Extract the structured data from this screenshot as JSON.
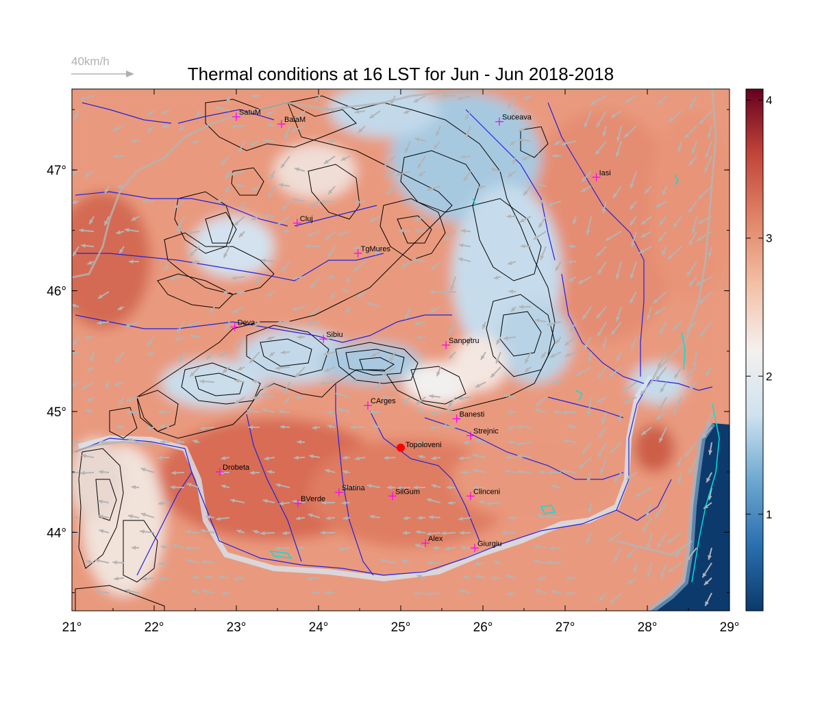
{
  "title": "Thermal conditions at 16 LST for Jun - Jun  2018-2018",
  "wind_reference": {
    "label": "40km/h"
  },
  "map": {
    "lon_range": [
      21,
      29
    ],
    "lat_range": [
      43.35,
      47.67
    ],
    "lon_ticks": [
      {
        "value": 21,
        "label": "21°"
      },
      {
        "value": 22,
        "label": "22°"
      },
      {
        "value": 23,
        "label": "23°"
      },
      {
        "value": 24,
        "label": "24°"
      },
      {
        "value": 25,
        "label": "25°"
      },
      {
        "value": 26,
        "label": "26°"
      },
      {
        "value": 27,
        "label": "27°"
      },
      {
        "value": 28,
        "label": "28°"
      },
      {
        "value": 29,
        "label": "29°"
      }
    ],
    "lat_ticks": [
      {
        "value": 44,
        "label": "44°"
      },
      {
        "value": 45,
        "label": "45°"
      },
      {
        "value": 46,
        "label": "46°"
      },
      {
        "value": 47,
        "label": "47°"
      }
    ],
    "cities": [
      {
        "name": "SatuM",
        "lon": 23.0,
        "lat": 47.44
      },
      {
        "name": "BaiaM",
        "lon": 23.55,
        "lat": 47.38
      },
      {
        "name": "Suceava",
        "lon": 26.2,
        "lat": 47.4
      },
      {
        "name": "Iasi",
        "lon": 27.38,
        "lat": 46.94
      },
      {
        "name": "Cluj",
        "lon": 23.74,
        "lat": 46.56
      },
      {
        "name": "TgMures",
        "lon": 24.48,
        "lat": 46.31
      },
      {
        "name": "Deva",
        "lon": 22.98,
        "lat": 45.7
      },
      {
        "name": "Sibiu",
        "lon": 24.06,
        "lat": 45.6
      },
      {
        "name": "Sanpetru",
        "lon": 25.55,
        "lat": 45.55
      },
      {
        "name": "CArges",
        "lon": 24.6,
        "lat": 45.05
      },
      {
        "name": "Banesti",
        "lon": 25.68,
        "lat": 44.94
      },
      {
        "name": "Strejnic",
        "lon": 25.85,
        "lat": 44.8
      },
      {
        "name": "Drobeta",
        "lon": 22.8,
        "lat": 44.5
      },
      {
        "name": "Slatina",
        "lon": 24.25,
        "lat": 44.33
      },
      {
        "name": "SilGum",
        "lon": 24.9,
        "lat": 44.3
      },
      {
        "name": "Clinceni",
        "lon": 25.85,
        "lat": 44.3
      },
      {
        "name": "BVerde",
        "lon": 23.75,
        "lat": 44.24
      },
      {
        "name": "Alex",
        "lon": 25.3,
        "lat": 43.91
      },
      {
        "name": "Giurgiu",
        "lon": 25.9,
        "lat": 43.87
      }
    ],
    "highlight_station": {
      "name": "Topoloveni",
      "lon": 25.0,
      "lat": 44.7,
      "color": "#ff0000"
    }
  },
  "colorbar": {
    "range": [
      0.3,
      4.08
    ],
    "ticks": [
      {
        "value": 1,
        "label": "1"
      },
      {
        "value": 2,
        "label": "2"
      },
      {
        "value": 3,
        "label": "3"
      },
      {
        "value": 4,
        "label": "4"
      }
    ],
    "colors": [
      "#0a3a6b",
      "#2a6fb0",
      "#6ea8d0",
      "#cfe2ef",
      "#f5f0ee",
      "#f3c0a6",
      "#e08567",
      "#c2453a",
      "#67001f"
    ]
  },
  "colors": {
    "city_marker": "#ff00ff",
    "rivers": "#2020e0",
    "borders": "#b4b4b4",
    "contours": "#000000",
    "lakes": "#00e0e0",
    "wind_arrows": "#b4b4b4"
  }
}
